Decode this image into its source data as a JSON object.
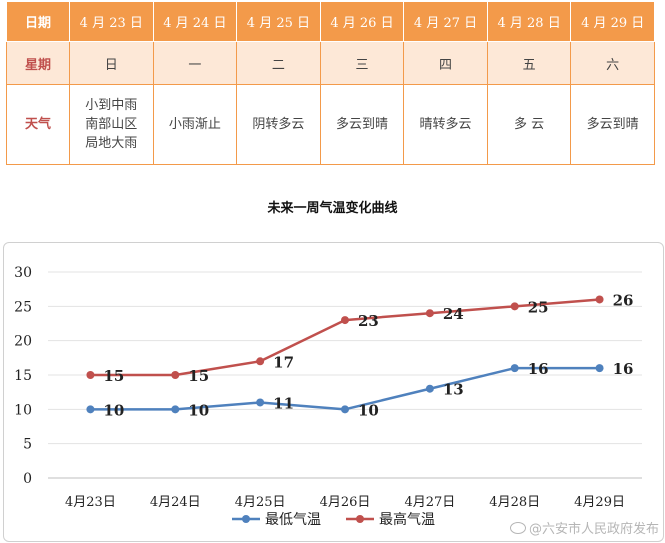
{
  "table": {
    "row_headers": {
      "date": "日期",
      "weekday": "星期",
      "weather": "天气"
    },
    "dates": [
      "4 月 23 日",
      "4 月 24 日",
      "4 月 25 日",
      "4 月 26 日",
      "4 月 27 日",
      "4 月 28 日",
      "4 月 29 日"
    ],
    "weekdays": [
      "日",
      "一",
      "二",
      "三",
      "四",
      "五",
      "六"
    ],
    "weather": [
      "小到中雨\n南部山区\n局地大雨",
      "小雨渐止",
      "阴转多云",
      "多云到晴",
      "晴转多云",
      "多 云",
      "多云到晴"
    ]
  },
  "chart_data": {
    "type": "line",
    "title": "未来一周气温变化曲线",
    "categories": [
      "4月23日",
      "4月24日",
      "4月25日",
      "4月26日",
      "4月27日",
      "4月28日",
      "4月29日"
    ],
    "series": [
      {
        "name": "最低气温",
        "values": [
          10,
          10,
          11,
          10,
          13,
          16,
          16
        ],
        "color": "#4f81bd"
      },
      {
        "name": "最高气温",
        "values": [
          15,
          15,
          17,
          23,
          24,
          25,
          26
        ],
        "color": "#c0504d"
      }
    ],
    "ylim": [
      0,
      30
    ],
    "yticks": [
      0,
      5,
      10,
      15,
      20,
      25,
      30
    ],
    "grid": true,
    "legend_position": "bottom"
  },
  "watermark": "@六安市人民政府发布"
}
